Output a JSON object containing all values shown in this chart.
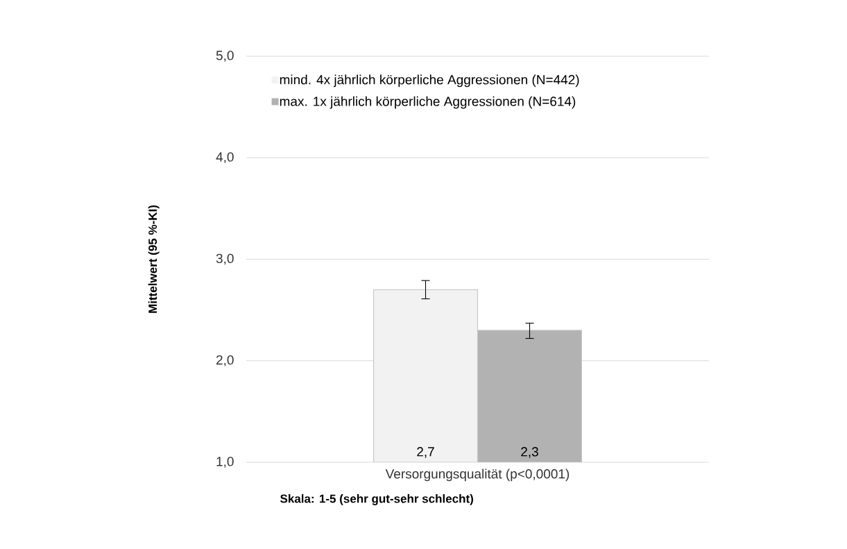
{
  "chart_data": {
    "type": "bar",
    "ylabel": "Mittelwert (95 %-KI)",
    "categories": [
      "Versorgungsqualität (p<0,0001)"
    ],
    "series": [
      {
        "name": "mind. 4x jährlich körperliche Aggressionen (N=442)",
        "color": "#f2f2f2",
        "values": [
          2.7
        ],
        "errors": [
          [
            2.61,
            2.79
          ]
        ],
        "value_labels": [
          "2,7"
        ]
      },
      {
        "name": "max. 1x jährlich körperliche Aggressionen (N=614)",
        "color": "#b2b2b2",
        "values": [
          2.3
        ],
        "errors": [
          [
            2.22,
            2.37
          ]
        ],
        "value_labels": [
          "2,3"
        ]
      }
    ],
    "ylim": [
      1,
      5
    ],
    "yticks": [
      {
        "value": 1,
        "label": "1,0"
      },
      {
        "value": 2,
        "label": "2,0"
      },
      {
        "value": 3,
        "label": "3,0"
      },
      {
        "value": 4,
        "label": "4,0"
      },
      {
        "value": 5,
        "label": "5,0"
      }
    ],
    "grid": "y",
    "legend": "top",
    "annotations": [
      "Skala: 1-5 (sehr gut-sehr schlecht)"
    ]
  }
}
